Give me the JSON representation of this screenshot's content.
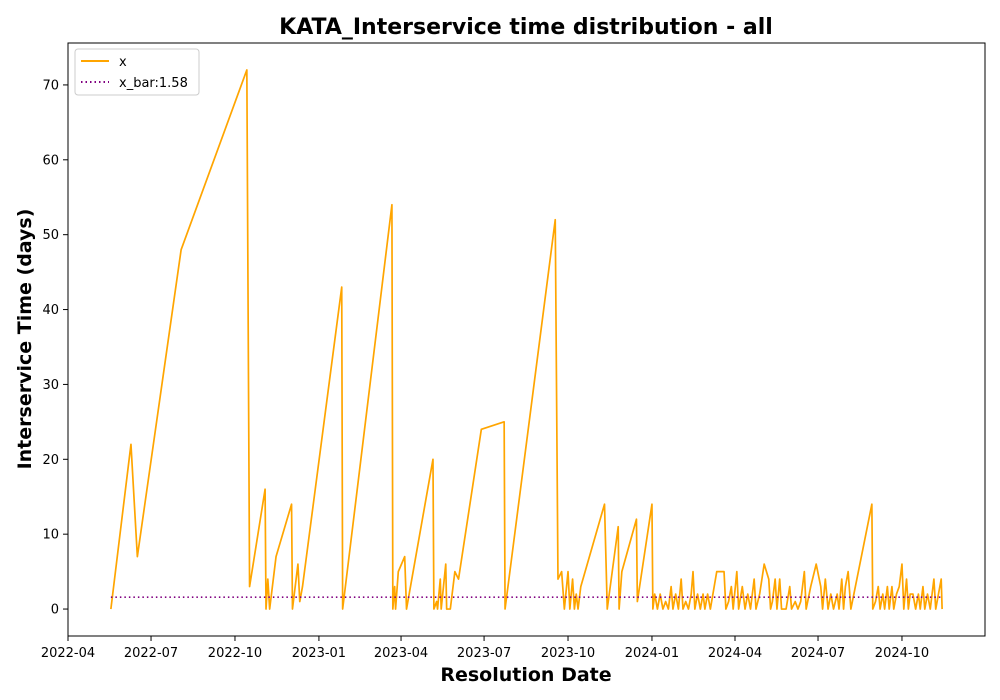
{
  "chart_data": {
    "type": "line",
    "title": "KATA_Interservice time distribution - all",
    "xlabel": "Resolution Date",
    "ylabel": "Interservice Time (days)",
    "xlim": [
      "2022-04-01",
      "2024-12-31"
    ],
    "ylim": [
      -3.6,
      75.6
    ],
    "xticks": [
      "2022-04",
      "2022-07",
      "2022-10",
      "2023-01",
      "2023-04",
      "2023-07",
      "2023-10",
      "2024-01",
      "2024-04",
      "2024-07",
      "2024-10"
    ],
    "yticks": [
      0,
      10,
      20,
      30,
      40,
      50,
      60,
      70
    ],
    "legend_position": "top-left",
    "colors": {
      "x": "#ffa500",
      "x_bar": "#800080"
    },
    "series": [
      {
        "name": "x",
        "style": "solid",
        "points": [
          [
            "2022-05-18",
            0
          ],
          [
            "2022-06-09",
            22
          ],
          [
            "2022-06-16",
            7
          ],
          [
            "2022-08-03",
            48
          ],
          [
            "2022-10-14",
            72
          ],
          [
            "2022-10-17",
            3
          ],
          [
            "2022-11-03",
            16
          ],
          [
            "2022-11-04",
            0
          ],
          [
            "2022-11-06",
            4
          ],
          [
            "2022-11-08",
            0
          ],
          [
            "2022-11-15",
            7
          ],
          [
            "2022-12-02",
            14
          ],
          [
            "2022-12-03",
            0
          ],
          [
            "2022-12-09",
            6
          ],
          [
            "2022-12-11",
            1
          ],
          [
            "2022-12-14",
            3
          ],
          [
            "2023-01-26",
            43
          ],
          [
            "2023-01-27",
            0
          ],
          [
            "2023-03-22",
            54
          ],
          [
            "2023-03-23",
            0
          ],
          [
            "2023-03-25",
            3
          ],
          [
            "2023-03-26",
            0
          ],
          [
            "2023-03-29",
            5
          ],
          [
            "2023-04-05",
            7
          ],
          [
            "2023-04-07",
            0
          ],
          [
            "2023-05-06",
            20
          ],
          [
            "2023-05-07",
            0
          ],
          [
            "2023-05-10",
            1
          ],
          [
            "2023-05-11",
            0
          ],
          [
            "2023-05-14",
            4
          ],
          [
            "2023-05-15",
            0
          ],
          [
            "2023-05-20",
            6
          ],
          [
            "2023-05-21",
            0
          ],
          [
            "2023-05-25",
            0
          ],
          [
            "2023-05-30",
            5
          ],
          [
            "2023-06-03",
            4
          ],
          [
            "2023-06-28",
            24
          ],
          [
            "2023-07-23",
            25
          ],
          [
            "2023-07-24",
            0
          ],
          [
            "2023-09-17",
            52
          ],
          [
            "2023-09-20",
            4
          ],
          [
            "2023-09-24",
            5
          ],
          [
            "2023-09-27",
            0
          ],
          [
            "2023-10-01",
            5
          ],
          [
            "2023-10-03",
            0
          ],
          [
            "2023-10-06",
            4
          ],
          [
            "2023-10-08",
            0
          ],
          [
            "2023-10-10",
            2
          ],
          [
            "2023-10-12",
            0
          ],
          [
            "2023-10-15",
            3
          ],
          [
            "2023-11-10",
            14
          ],
          [
            "2023-11-13",
            0
          ],
          [
            "2023-11-25",
            11
          ],
          [
            "2023-11-26",
            0
          ],
          [
            "2023-11-29",
            5
          ],
          [
            "2023-12-15",
            12
          ],
          [
            "2023-12-16",
            1
          ],
          [
            "2024-01-01",
            14
          ],
          [
            "2024-01-02",
            0
          ],
          [
            "2024-01-04",
            2
          ],
          [
            "2024-01-07",
            0
          ],
          [
            "2024-01-10",
            2
          ],
          [
            "2024-01-13",
            0
          ],
          [
            "2024-01-16",
            1
          ],
          [
            "2024-01-19",
            0
          ],
          [
            "2024-01-22",
            3
          ],
          [
            "2024-01-24",
            0
          ],
          [
            "2024-01-27",
            2
          ],
          [
            "2024-01-30",
            0
          ],
          [
            "2024-02-02",
            4
          ],
          [
            "2024-02-04",
            0
          ],
          [
            "2024-02-07",
            1
          ],
          [
            "2024-02-10",
            0
          ],
          [
            "2024-02-13",
            2
          ],
          [
            "2024-02-15",
            5
          ],
          [
            "2024-02-17",
            0
          ],
          [
            "2024-02-20",
            2
          ],
          [
            "2024-02-23",
            0
          ],
          [
            "2024-02-26",
            2
          ],
          [
            "2024-02-28",
            0
          ],
          [
            "2024-03-02",
            2
          ],
          [
            "2024-03-05",
            0
          ],
          [
            "2024-03-12",
            5
          ],
          [
            "2024-03-20",
            5
          ],
          [
            "2024-03-22",
            0
          ],
          [
            "2024-03-25",
            1
          ],
          [
            "2024-03-28",
            3
          ],
          [
            "2024-03-30",
            0
          ],
          [
            "2024-04-03",
            5
          ],
          [
            "2024-04-05",
            0
          ],
          [
            "2024-04-09",
            3
          ],
          [
            "2024-04-12",
            0
          ],
          [
            "2024-04-15",
            2
          ],
          [
            "2024-04-18",
            0
          ],
          [
            "2024-04-22",
            4
          ],
          [
            "2024-04-24",
            0
          ],
          [
            "2024-04-28",
            2
          ],
          [
            "2024-05-03",
            6
          ],
          [
            "2024-05-08",
            4
          ],
          [
            "2024-05-10",
            0
          ],
          [
            "2024-05-12",
            1
          ],
          [
            "2024-05-15",
            4
          ],
          [
            "2024-05-17",
            0
          ],
          [
            "2024-05-20",
            4
          ],
          [
            "2024-05-22",
            0
          ],
          [
            "2024-05-27",
            0
          ],
          [
            "2024-05-31",
            3
          ],
          [
            "2024-06-02",
            0
          ],
          [
            "2024-06-06",
            1
          ],
          [
            "2024-06-09",
            0
          ],
          [
            "2024-06-12",
            1
          ],
          [
            "2024-06-16",
            5
          ],
          [
            "2024-06-18",
            0
          ],
          [
            "2024-06-23",
            3
          ],
          [
            "2024-06-29",
            6
          ],
          [
            "2024-07-04",
            3
          ],
          [
            "2024-07-06",
            0
          ],
          [
            "2024-07-09",
            4
          ],
          [
            "2024-07-12",
            0
          ],
          [
            "2024-07-15",
            2
          ],
          [
            "2024-07-18",
            0
          ],
          [
            "2024-07-22",
            2
          ],
          [
            "2024-07-24",
            0
          ],
          [
            "2024-07-27",
            4
          ],
          [
            "2024-07-29",
            0
          ],
          [
            "2024-07-31",
            3
          ],
          [
            "2024-08-03",
            5
          ],
          [
            "2024-08-06",
            0
          ],
          [
            "2024-08-29",
            14
          ],
          [
            "2024-08-30",
            0
          ],
          [
            "2024-09-02",
            1
          ],
          [
            "2024-09-05",
            3
          ],
          [
            "2024-09-07",
            0
          ],
          [
            "2024-09-10",
            2
          ],
          [
            "2024-09-12",
            0
          ],
          [
            "2024-09-15",
            3
          ],
          [
            "2024-09-17",
            0
          ],
          [
            "2024-09-20",
            3
          ],
          [
            "2024-09-22",
            0
          ],
          [
            "2024-09-25",
            2
          ],
          [
            "2024-09-28",
            3
          ],
          [
            "2024-10-01",
            6
          ],
          [
            "2024-10-03",
            0
          ],
          [
            "2024-10-06",
            4
          ],
          [
            "2024-10-08",
            0
          ],
          [
            "2024-10-10",
            2
          ],
          [
            "2024-10-13",
            2
          ],
          [
            "2024-10-16",
            0
          ],
          [
            "2024-10-19",
            2
          ],
          [
            "2024-10-21",
            0
          ],
          [
            "2024-10-24",
            3
          ],
          [
            "2024-10-26",
            0
          ],
          [
            "2024-10-29",
            2
          ],
          [
            "2024-11-01",
            0
          ],
          [
            "2024-11-05",
            4
          ],
          [
            "2024-11-07",
            0
          ],
          [
            "2024-11-10",
            2
          ],
          [
            "2024-11-13",
            4
          ],
          [
            "2024-11-14",
            0
          ]
        ]
      },
      {
        "name": "x_bar:1.58",
        "style": "dotted",
        "points": [
          [
            "2022-05-18",
            1.58
          ],
          [
            "2024-11-14",
            1.58
          ]
        ]
      }
    ]
  }
}
